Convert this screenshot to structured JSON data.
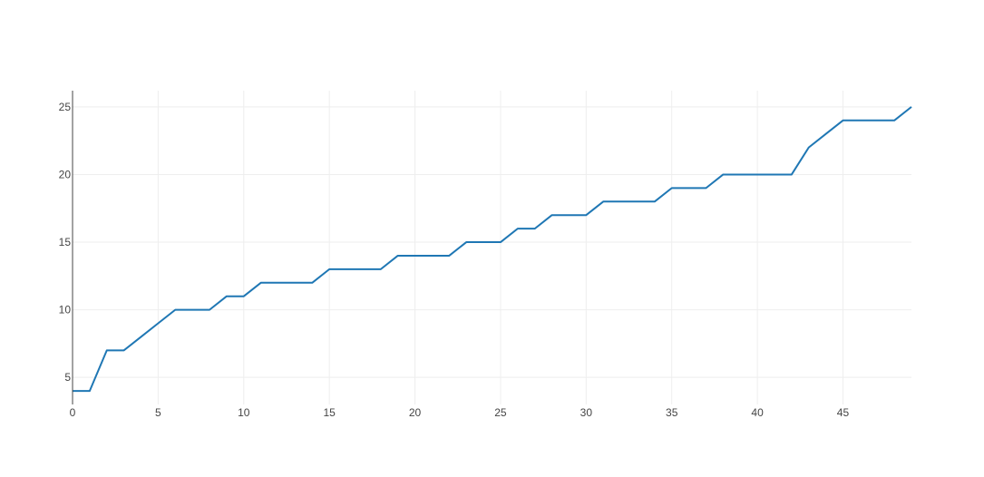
{
  "colors": {
    "line": "#1f77b4",
    "grid": "#eeeeee",
    "axis": "#444444",
    "background": "#ffffff"
  },
  "chart_data": {
    "type": "line",
    "title": "",
    "xlabel": "",
    "ylabel": "",
    "xlim": [
      0,
      49
    ],
    "ylim": [
      3,
      26.2
    ],
    "xticks": [
      0,
      5,
      10,
      15,
      20,
      25,
      30,
      35,
      40,
      45
    ],
    "yticks": [
      5,
      10,
      15,
      20,
      25
    ],
    "grid": true,
    "legend": "none",
    "series": [
      {
        "x": [
          0,
          1,
          2,
          3,
          4,
          5,
          6,
          7,
          8,
          9,
          10,
          11,
          12,
          13,
          14,
          15,
          16,
          17,
          18,
          19,
          20,
          21,
          22,
          23,
          24,
          25,
          26,
          27,
          28,
          29,
          30,
          31,
          32,
          33,
          34,
          35,
          36,
          37,
          38,
          39,
          40,
          41,
          42,
          43,
          44,
          45,
          46,
          47,
          48,
          49
        ],
        "y": [
          4,
          4,
          7,
          7,
          8,
          9,
          10,
          10,
          10,
          11,
          11,
          12,
          12,
          12,
          12,
          13,
          13,
          13,
          13,
          14,
          14,
          14,
          14,
          15,
          15,
          15,
          16,
          16,
          17,
          17,
          17,
          18,
          18,
          18,
          18,
          19,
          19,
          19,
          20,
          20,
          20,
          20,
          20,
          22,
          23,
          24,
          24,
          24,
          24,
          25
        ]
      }
    ]
  }
}
